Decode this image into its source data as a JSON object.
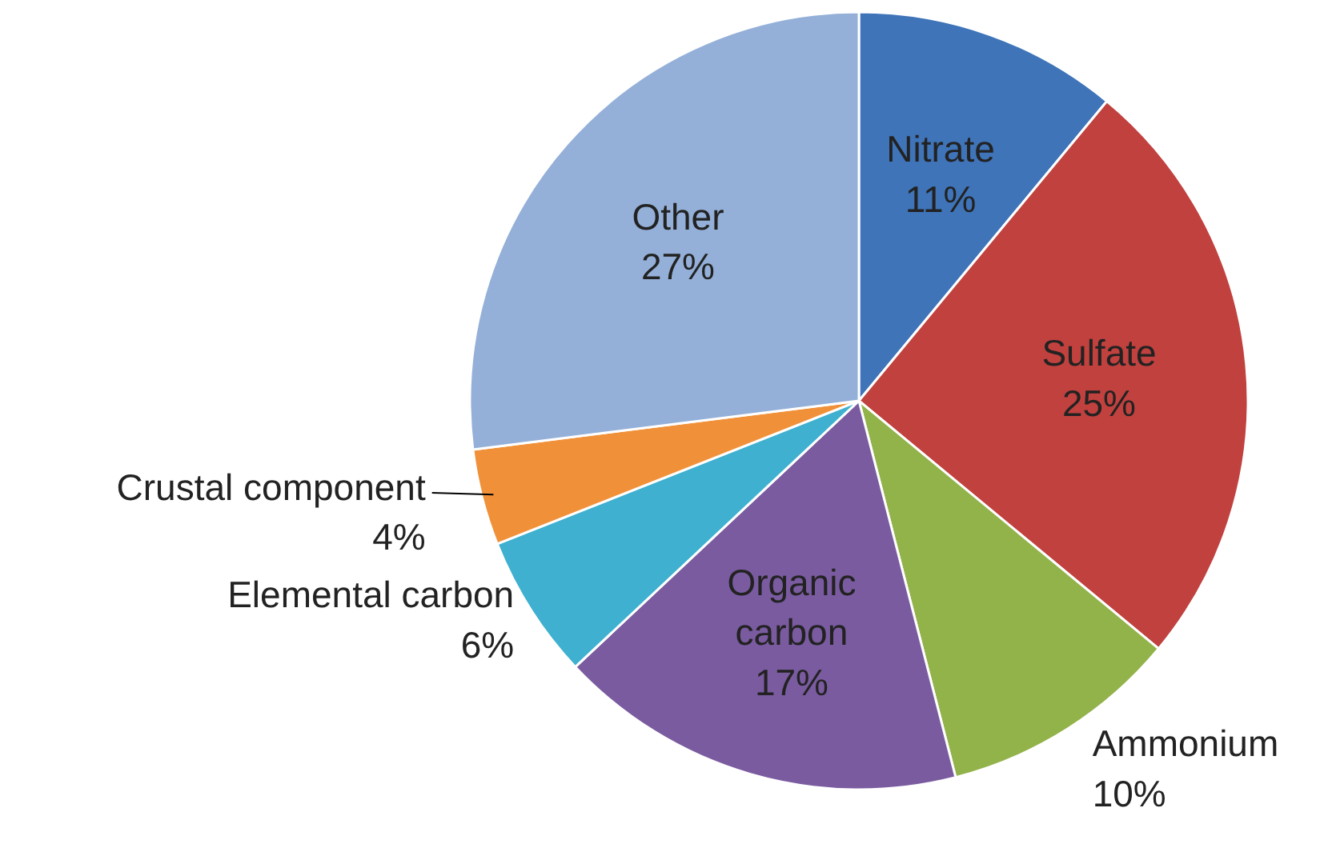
{
  "chart_data": {
    "type": "pie",
    "categories": [
      "Nitrate",
      "Sulfate",
      "Ammonium",
      "Organic carbon",
      "Elemental carbon",
      "Crustal component",
      "Other"
    ],
    "values": [
      11,
      25,
      10,
      17,
      6,
      4,
      27
    ],
    "value_labels": [
      "11%",
      "25%",
      "10%",
      "17%",
      "6%",
      "4%",
      "27%"
    ],
    "colors": [
      "#3f74b9",
      "#c0413e",
      "#92b24a",
      "#7a5ba0",
      "#3fb0cf",
      "#f0913a",
      "#94b0d8"
    ]
  }
}
